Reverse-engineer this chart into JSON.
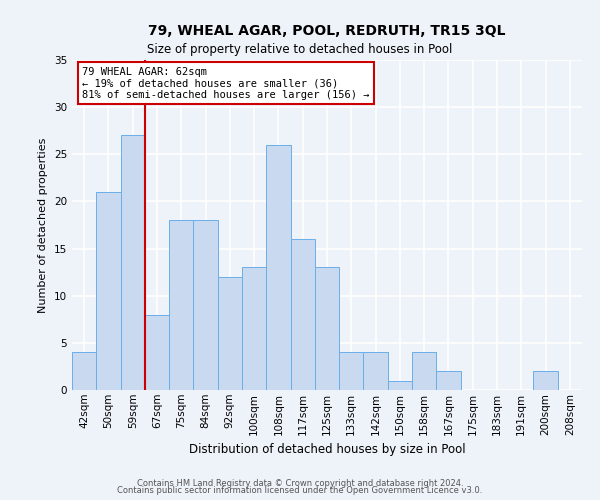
{
  "title": "79, WHEAL AGAR, POOL, REDRUTH, TR15 3QL",
  "subtitle": "Size of property relative to detached houses in Pool",
  "xlabel": "Distribution of detached houses by size in Pool",
  "ylabel": "Number of detached properties",
  "categories": [
    "42sqm",
    "50sqm",
    "59sqm",
    "67sqm",
    "75sqm",
    "84sqm",
    "92sqm",
    "100sqm",
    "108sqm",
    "117sqm",
    "125sqm",
    "133sqm",
    "142sqm",
    "150sqm",
    "158sqm",
    "167sqm",
    "175sqm",
    "183sqm",
    "191sqm",
    "200sqm",
    "208sqm"
  ],
  "values": [
    4,
    21,
    27,
    8,
    18,
    18,
    12,
    13,
    26,
    16,
    13,
    4,
    4,
    1,
    4,
    2,
    0,
    0,
    0,
    2,
    0
  ],
  "bar_color": "#c8d9f0",
  "bar_edge_color": "#6aaee8",
  "ylim": [
    0,
    35
  ],
  "yticks": [
    0,
    5,
    10,
    15,
    20,
    25,
    30,
    35
  ],
  "property_line_color": "#cc0000",
  "property_line_bar_index": 3,
  "annotation_line1": "79 WHEAL AGAR: 62sqm",
  "annotation_line2": "← 19% of detached houses are smaller (36)",
  "annotation_line3": "81% of semi-detached houses are larger (156) →",
  "annotation_box_facecolor": "#ffffff",
  "annotation_box_edgecolor": "#cc0000",
  "footer_line1": "Contains HM Land Registry data © Crown copyright and database right 2024.",
  "footer_line2": "Contains public sector information licensed under the Open Government Licence v3.0.",
  "background_color": "#eef2f9",
  "plot_background_color": "#eef2f9",
  "grid_color": "#ffffff",
  "title_fontsize": 10,
  "subtitle_fontsize": 8.5,
  "ylabel_fontsize": 8,
  "xlabel_fontsize": 8.5,
  "tick_fontsize": 7.5,
  "annotation_fontsize": 7.5,
  "footer_fontsize": 6
}
